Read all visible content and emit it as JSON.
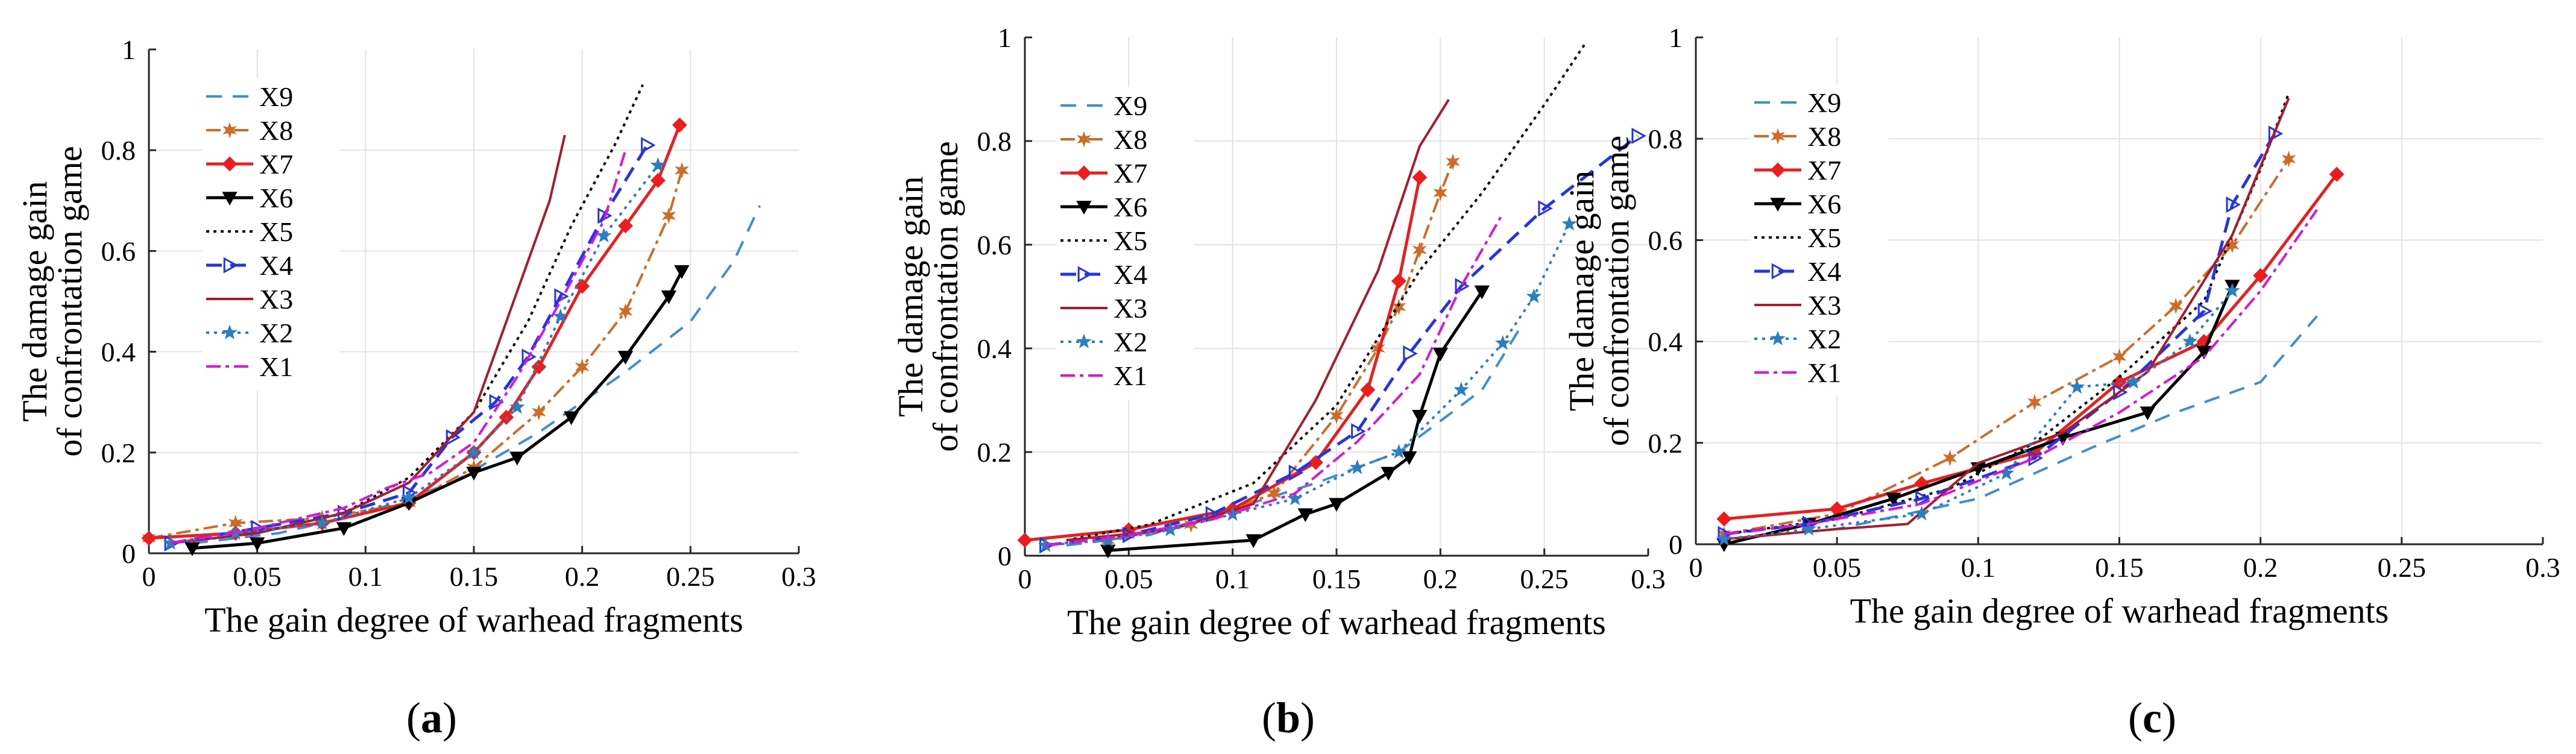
{
  "figure": {
    "captions": [
      "a",
      "b",
      "c"
    ]
  },
  "colors": {
    "X9": "#3a8fd6",
    "X8": "#d06b25",
    "X7": "#ee1c1c",
    "X6": "#000000",
    "X5": "#000000",
    "X4": "#2233ee",
    "X3": "#aa1a2b",
    "X2": "#2a7fc0",
    "X1": "#e010e0",
    "grid": "#e3e3e3",
    "axis": "#262626"
  },
  "chart_data": [
    {
      "type": "line",
      "panel": "a",
      "xlabel": "The gain degree of warhead fragments",
      "ylabel_lines": [
        "The damage gain",
        "of confrontation game"
      ],
      "xlim": [
        0,
        0.3
      ],
      "ylim": [
        0,
        1
      ],
      "xticks": [
        "0",
        "0.05",
        "0.1",
        "0.15",
        "0.2",
        "0.25",
        "0.3"
      ],
      "yticks": [
        "0",
        "0.2",
        "0.4",
        "0.6",
        "0.8",
        "1"
      ],
      "grid": true,
      "legend": "top-left",
      "series": [
        {
          "name": "X9",
          "x": [
            0.02,
            0.06,
            0.1,
            0.14,
            0.18,
            0.22,
            0.25,
            0.27,
            0.282
          ],
          "y": [
            0.02,
            0.04,
            0.08,
            0.14,
            0.24,
            0.36,
            0.46,
            0.58,
            0.69
          ]
        },
        {
          "name": "X8",
          "x": [
            0.0,
            0.04,
            0.08,
            0.12,
            0.15,
            0.18,
            0.2,
            0.22,
            0.24,
            0.246
          ],
          "y": [
            0.03,
            0.06,
            0.07,
            0.1,
            0.17,
            0.28,
            0.37,
            0.48,
            0.67,
            0.76
          ]
        },
        {
          "name": "X7",
          "x": [
            0.0,
            0.04,
            0.08,
            0.12,
            0.15,
            0.165,
            0.18,
            0.2,
            0.22,
            0.235,
            0.245
          ],
          "y": [
            0.03,
            0.04,
            0.06,
            0.1,
            0.2,
            0.27,
            0.37,
            0.53,
            0.65,
            0.74,
            0.85
          ]
        },
        {
          "name": "X6",
          "x": [
            0.02,
            0.05,
            0.09,
            0.12,
            0.15,
            0.17,
            0.195,
            0.22,
            0.24,
            0.246
          ],
          "y": [
            0.01,
            0.02,
            0.05,
            0.1,
            0.16,
            0.19,
            0.27,
            0.39,
            0.51,
            0.56
          ]
        },
        {
          "name": "X5",
          "x": [
            0.01,
            0.05,
            0.09,
            0.12,
            0.15,
            0.175,
            0.195,
            0.215,
            0.228
          ],
          "y": [
            0.02,
            0.04,
            0.08,
            0.15,
            0.28,
            0.46,
            0.65,
            0.81,
            0.93
          ]
        },
        {
          "name": "X4",
          "x": [
            0.01,
            0.05,
            0.09,
            0.12,
            0.14,
            0.16,
            0.175,
            0.19,
            0.21,
            0.23
          ],
          "y": [
            0.02,
            0.05,
            0.08,
            0.12,
            0.23,
            0.3,
            0.39,
            0.51,
            0.67,
            0.81
          ]
        },
        {
          "name": "X3",
          "x": [
            0.01,
            0.05,
            0.09,
            0.12,
            0.15,
            0.17,
            0.185,
            0.192
          ],
          "y": [
            0.02,
            0.04,
            0.08,
            0.14,
            0.28,
            0.52,
            0.7,
            0.83
          ]
        },
        {
          "name": "X2",
          "x": [
            0.01,
            0.04,
            0.08,
            0.12,
            0.15,
            0.17,
            0.19,
            0.21,
            0.235
          ],
          "y": [
            0.02,
            0.04,
            0.06,
            0.11,
            0.2,
            0.29,
            0.47,
            0.63,
            0.77
          ]
        },
        {
          "name": "X1",
          "x": [
            0.01,
            0.05,
            0.09,
            0.11,
            0.13,
            0.15,
            0.17,
            0.19,
            0.21,
            0.22
          ],
          "y": [
            0.02,
            0.05,
            0.09,
            0.13,
            0.16,
            0.22,
            0.35,
            0.5,
            0.66,
            0.8
          ]
        }
      ]
    },
    {
      "type": "line",
      "panel": "b",
      "xlabel": "The gain degree of warhead fragments",
      "ylabel_lines": [
        "The damage gain",
        "of confrontation game"
      ],
      "xlim": [
        0,
        0.3
      ],
      "ylim": [
        0,
        1
      ],
      "xticks": [
        "0",
        "0.05",
        "0.1",
        "0.15",
        "0.2",
        "0.25",
        "0.3"
      ],
      "yticks": [
        "0",
        "0.2",
        "0.4",
        "0.6",
        "0.8",
        "1"
      ],
      "grid": true,
      "legend": "top-left",
      "series": [
        {
          "name": "X9",
          "x": [
            0.02,
            0.06,
            0.1,
            0.14,
            0.18,
            0.22,
            0.24
          ],
          "y": [
            0.02,
            0.04,
            0.09,
            0.14,
            0.2,
            0.32,
            0.45
          ]
        },
        {
          "name": "X8",
          "x": [
            0.04,
            0.08,
            0.12,
            0.15,
            0.17,
            0.18,
            0.19,
            0.2,
            0.206
          ],
          "y": [
            0.03,
            0.06,
            0.12,
            0.27,
            0.4,
            0.48,
            0.59,
            0.7,
            0.76
          ]
        },
        {
          "name": "X7",
          "x": [
            0.0,
            0.05,
            0.1,
            0.14,
            0.165,
            0.18,
            0.19
          ],
          "y": [
            0.03,
            0.05,
            0.09,
            0.18,
            0.32,
            0.53,
            0.73
          ]
        },
        {
          "name": "X6",
          "x": [
            0.04,
            0.11,
            0.135,
            0.15,
            0.175,
            0.185,
            0.19,
            0.2,
            0.22
          ],
          "y": [
            0.01,
            0.03,
            0.08,
            0.1,
            0.16,
            0.19,
            0.27,
            0.39,
            0.51
          ]
        },
        {
          "name": "X5",
          "x": [
            0.02,
            0.06,
            0.11,
            0.15,
            0.19,
            0.22,
            0.25,
            0.27
          ],
          "y": [
            0.03,
            0.06,
            0.14,
            0.29,
            0.55,
            0.7,
            0.87,
            0.99
          ]
        },
        {
          "name": "X4",
          "x": [
            0.01,
            0.05,
            0.09,
            0.13,
            0.16,
            0.185,
            0.21,
            0.25,
            0.295
          ],
          "y": [
            0.02,
            0.04,
            0.08,
            0.16,
            0.24,
            0.39,
            0.52,
            0.67,
            0.81
          ]
        },
        {
          "name": "X3",
          "x": [
            0.02,
            0.07,
            0.11,
            0.14,
            0.17,
            0.19,
            0.204
          ],
          "y": [
            0.03,
            0.05,
            0.1,
            0.3,
            0.55,
            0.79,
            0.88
          ]
        },
        {
          "name": "X2",
          "x": [
            0.01,
            0.04,
            0.07,
            0.1,
            0.13,
            0.16,
            0.18,
            0.21,
            0.23,
            0.245,
            0.262
          ],
          "y": [
            0.02,
            0.03,
            0.05,
            0.08,
            0.11,
            0.17,
            0.2,
            0.32,
            0.41,
            0.5,
            0.64
          ]
        },
        {
          "name": "X1",
          "x": [
            0.01,
            0.05,
            0.09,
            0.13,
            0.16,
            0.19,
            0.21,
            0.23
          ],
          "y": [
            0.02,
            0.04,
            0.07,
            0.12,
            0.22,
            0.35,
            0.52,
            0.66
          ]
        }
      ]
    },
    {
      "type": "line",
      "panel": "c",
      "xlabel": "The gain degree of warhead fragments",
      "ylabel_lines": [
        "The damage gain",
        "of confrontation game"
      ],
      "xlim": [
        0,
        0.3
      ],
      "ylim": [
        0,
        1
      ],
      "xticks": [
        "0",
        "0.05",
        "0.1",
        "0.15",
        "0.2",
        "0.25",
        "0.3"
      ],
      "yticks": [
        "0",
        "0.2",
        "0.4",
        "0.6",
        "0.8",
        "1"
      ],
      "grid": true,
      "legend": "top-left",
      "series": [
        {
          "name": "X9",
          "x": [
            0.01,
            0.05,
            0.1,
            0.14,
            0.17,
            0.2,
            0.22
          ],
          "y": [
            0.01,
            0.03,
            0.09,
            0.19,
            0.26,
            0.32,
            0.45
          ]
        },
        {
          "name": "X8",
          "x": [
            0.01,
            0.05,
            0.09,
            0.12,
            0.15,
            0.17,
            0.19,
            0.21
          ],
          "y": [
            0.02,
            0.06,
            0.17,
            0.28,
            0.37,
            0.47,
            0.59,
            0.76
          ]
        },
        {
          "name": "X7",
          "x": [
            0.01,
            0.05,
            0.08,
            0.12,
            0.15,
            0.18,
            0.2,
            0.227
          ],
          "y": [
            0.05,
            0.07,
            0.12,
            0.18,
            0.32,
            0.4,
            0.53,
            0.73
          ]
        },
        {
          "name": "X6",
          "x": [
            0.01,
            0.04,
            0.07,
            0.1,
            0.13,
            0.16,
            0.18,
            0.19
          ],
          "y": [
            0.0,
            0.04,
            0.09,
            0.15,
            0.21,
            0.26,
            0.38,
            0.51
          ]
        },
        {
          "name": "X5",
          "x": [
            0.01,
            0.05,
            0.09,
            0.12,
            0.15,
            0.18,
            0.2,
            0.21
          ],
          "y": [
            0.02,
            0.05,
            0.11,
            0.2,
            0.33,
            0.48,
            0.74,
            0.89
          ]
        },
        {
          "name": "X4",
          "x": [
            0.01,
            0.04,
            0.08,
            0.12,
            0.15,
            0.18,
            0.19,
            0.205
          ],
          "y": [
            0.02,
            0.04,
            0.09,
            0.17,
            0.3,
            0.46,
            0.67,
            0.81
          ]
        },
        {
          "name": "X3",
          "x": [
            0.01,
            0.05,
            0.075,
            0.1,
            0.13,
            0.16,
            0.19,
            0.21
          ],
          "y": [
            0.01,
            0.03,
            0.04,
            0.16,
            0.22,
            0.34,
            0.61,
            0.88
          ]
        },
        {
          "name": "X2",
          "x": [
            0.01,
            0.04,
            0.08,
            0.11,
            0.135,
            0.155,
            0.175,
            0.19
          ],
          "y": [
            0.01,
            0.03,
            0.06,
            0.14,
            0.31,
            0.32,
            0.4,
            0.5
          ]
        },
        {
          "name": "X1",
          "x": [
            0.01,
            0.04,
            0.08,
            0.12,
            0.15,
            0.18,
            0.2,
            0.22
          ],
          "y": [
            0.02,
            0.04,
            0.08,
            0.17,
            0.26,
            0.37,
            0.5,
            0.66
          ]
        }
      ]
    }
  ],
  "legend_order": [
    "X9",
    "X8",
    "X7",
    "X6",
    "X5",
    "X4",
    "X3",
    "X2",
    "X1"
  ]
}
